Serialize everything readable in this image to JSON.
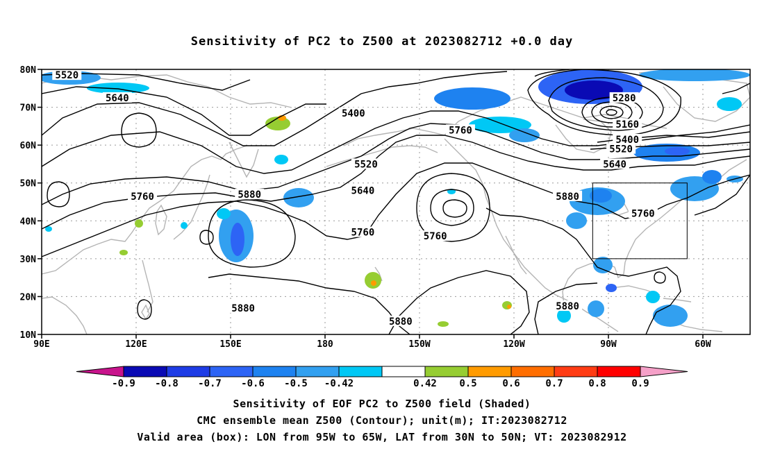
{
  "title": "Sensitivity of PC2 to Z500 at 2023082712 +0.0 day",
  "lat_labels": [
    "80N",
    "70N",
    "60N",
    "50N",
    "40N",
    "30N",
    "20N",
    "10N"
  ],
  "lon_labels": [
    "90E",
    "120E",
    "150E",
    "180",
    "150W",
    "120W",
    "90W",
    "60W"
  ],
  "contour_labels": [
    {
      "text": "5520",
      "lon": 98,
      "lat": 78.5
    },
    {
      "text": "5640",
      "lon": 114,
      "lat": 72.5
    },
    {
      "text": "5400",
      "lon": 189,
      "lat": 68.5
    },
    {
      "text": "5280",
      "lon": 275,
      "lat": 72.5
    },
    {
      "text": "5160",
      "lon": 276,
      "lat": 65.5
    },
    {
      "text": "5400",
      "lon": 276,
      "lat": 61.5
    },
    {
      "text": "5520",
      "lon": 274,
      "lat": 59
    },
    {
      "text": "5640",
      "lon": 272,
      "lat": 55
    },
    {
      "text": "5760",
      "lon": 223,
      "lat": 64
    },
    {
      "text": "5520",
      "lon": 193,
      "lat": 55
    },
    {
      "text": "5640",
      "lon": 192,
      "lat": 48
    },
    {
      "text": "5760",
      "lon": 122,
      "lat": 46.5
    },
    {
      "text": "5880",
      "lon": 156,
      "lat": 47
    },
    {
      "text": "5760",
      "lon": 192,
      "lat": 37
    },
    {
      "text": "5760",
      "lon": 215,
      "lat": 36
    },
    {
      "text": "5880",
      "lon": 257,
      "lat": 46.5
    },
    {
      "text": "5760",
      "lon": 281,
      "lat": 42
    },
    {
      "text": "5880",
      "lon": 154,
      "lat": 17
    },
    {
      "text": "5880",
      "lon": 204,
      "lat": 13.5
    },
    {
      "text": "5880",
      "lon": 257,
      "lat": 17.5
    }
  ],
  "valid_box": {
    "lon_min": 265,
    "lon_max": 295,
    "lat_min": 30,
    "lat_max": 50
  },
  "colorbar": {
    "labels": [
      "-0.9",
      "-0.8",
      "-0.7",
      "-0.6",
      "-0.5",
      "-0.42",
      "0.42",
      "0.5",
      "0.6",
      "0.7",
      "0.8",
      "0.9"
    ],
    "colors": [
      "#0a0ab4",
      "#1e3ce6",
      "#2d64f5",
      "#1e82f0",
      "#32a0f0",
      "#00c8f5",
      "#ffffff",
      "#96cd32",
      "#ff9b00",
      "#ff6e00",
      "#ff3c14",
      "#ff0000"
    ],
    "low_arrow": "#c8148c",
    "high_arrow": "#f5a0c8"
  },
  "captions": [
    "Sensitivity of EOF PC2 to Z500 field (Shaded)",
    "CMC ensemble mean Z500 (Contour); unit(m); IT:2023082712",
    "Valid area (box): LON from 95W to 65W, LAT from 30N to 50N; VT: 2023082912"
  ]
}
